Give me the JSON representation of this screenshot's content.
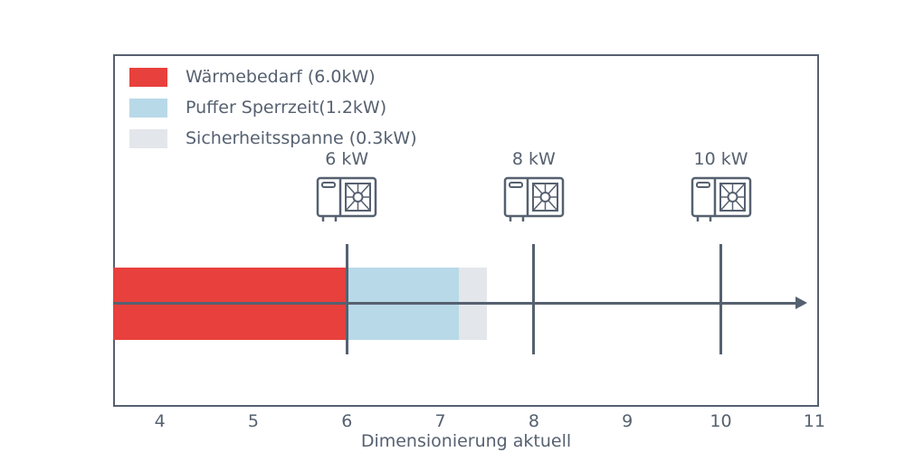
{
  "colors": {
    "axis": "#566170",
    "background": "#ffffff",
    "heat_demand_red": "#e8403c",
    "buffer_blue": "#b8d9e8",
    "safety_gray": "#e3e6ea"
  },
  "chart_data": {
    "type": "bar",
    "orientation": "horizontal-stacked",
    "title": "",
    "xlabel": "Dimensionierung aktuell",
    "ylabel": "",
    "xlim": [
      3.5,
      11.05
    ],
    "x_ticks": [
      4,
      5,
      6,
      7,
      8,
      9,
      10,
      11
    ],
    "grid": false,
    "legend_position": "upper-left",
    "segments": [
      {
        "id": "waermebedarf",
        "label": "Wärmebedarf (6.0kW)",
        "value_kw": 6.0,
        "from": 3.5,
        "to": 6.0,
        "color": "#e8403c"
      },
      {
        "id": "puffer-sperrzeit",
        "label": "Puffer Sperrzeit(1.2kW)",
        "value_kw": 1.2,
        "from": 6.0,
        "to": 7.2,
        "color": "#b8d9e8"
      },
      {
        "id": "sicherheitsspanne",
        "label": "Sicherheitsspanne (0.3kW)",
        "value_kw": 0.3,
        "from": 7.2,
        "to": 7.5,
        "color": "#e3e6ea"
      }
    ],
    "markers": [
      {
        "kw": 6,
        "label": "6 kW",
        "icon": "heat-pump-icon"
      },
      {
        "kw": 8,
        "label": "8 kW",
        "icon": "heat-pump-icon"
      },
      {
        "kw": 10,
        "label": "10 kW",
        "icon": "heat-pump-icon"
      }
    ],
    "legend": [
      {
        "label": "Wärmebedarf (6.0kW)",
        "color": "#e8403c"
      },
      {
        "label": "Puffer Sperrzeit(1.2kW)",
        "color": "#b8d9e8"
      },
      {
        "label": "Sicherheitsspanne (0.3kW)",
        "color": "#e3e6ea"
      }
    ],
    "axis_arrow": {
      "from_kw": 3.5,
      "to_kw": 10.8,
      "direction": "right"
    }
  }
}
